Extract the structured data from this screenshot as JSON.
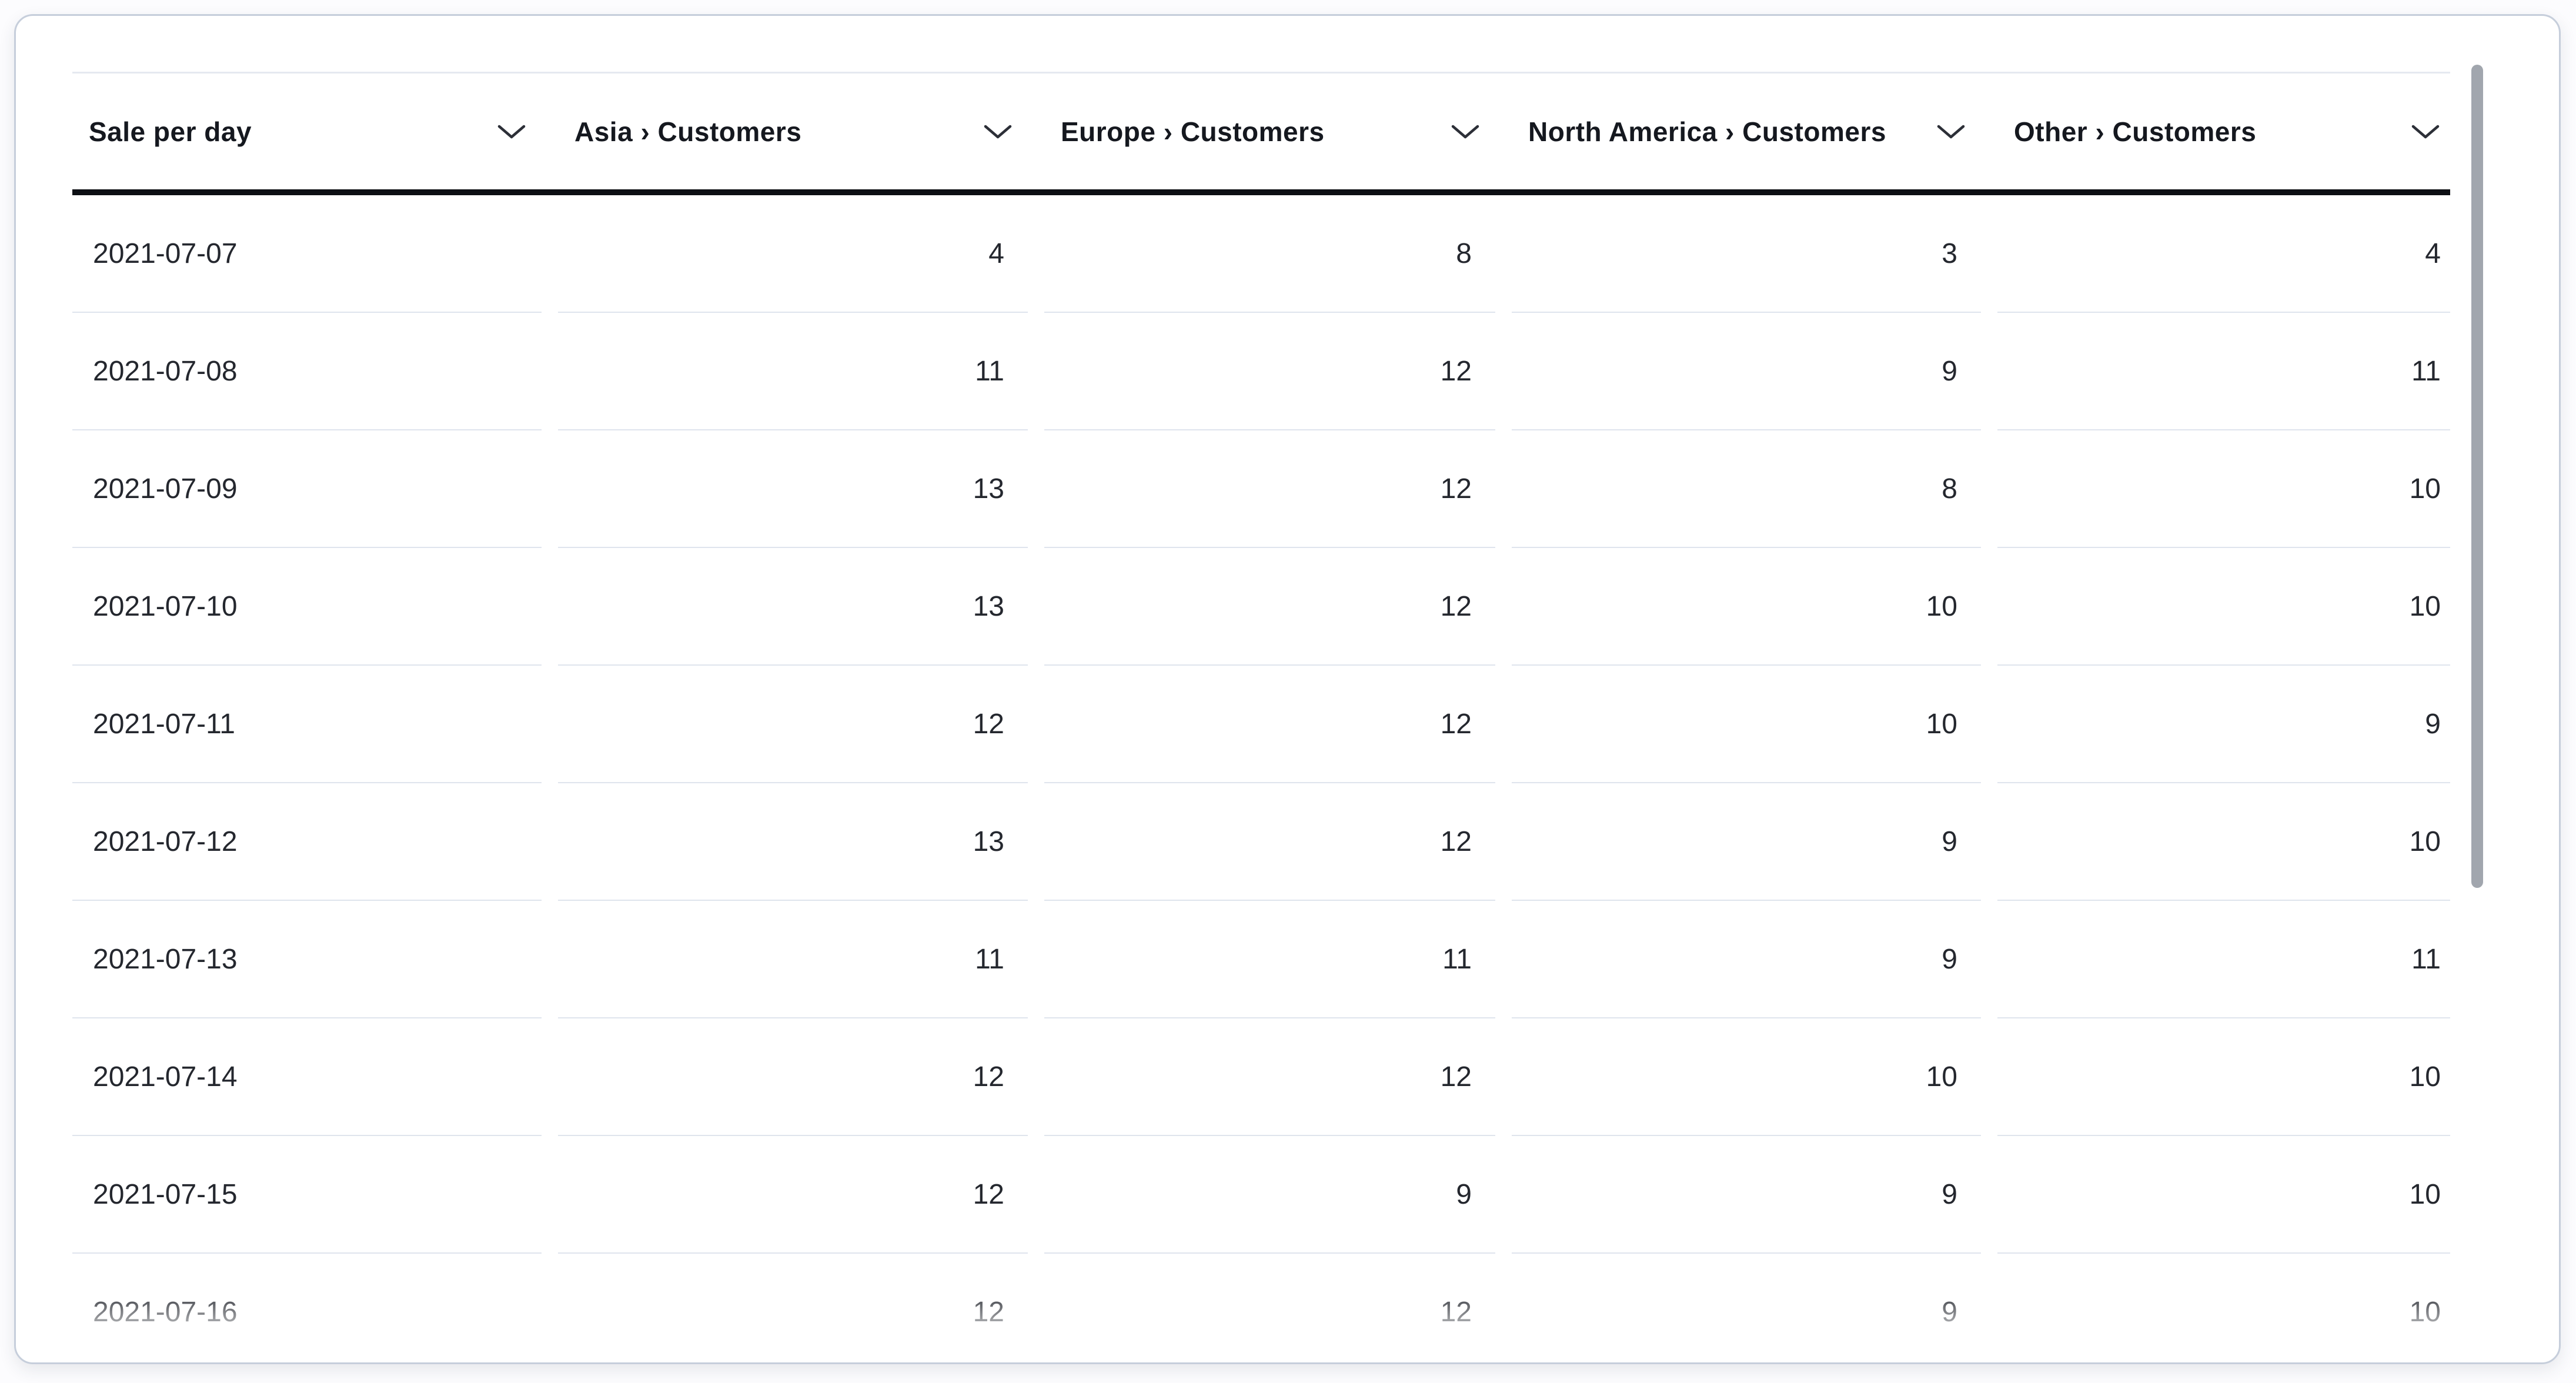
{
  "table": {
    "columns": [
      {
        "label": "Sale per day",
        "align": "left"
      },
      {
        "label": "Asia › Customers",
        "align": "right"
      },
      {
        "label": "Europe › Customers",
        "align": "right"
      },
      {
        "label": "North America › Customers",
        "align": "right"
      },
      {
        "label": "Other › Customers",
        "align": "right"
      }
    ],
    "rows": [
      [
        "2021-07-07",
        4,
        8,
        3,
        4
      ],
      [
        "2021-07-08",
        11,
        12,
        9,
        11
      ],
      [
        "2021-07-09",
        13,
        12,
        8,
        10
      ],
      [
        "2021-07-10",
        13,
        12,
        10,
        10
      ],
      [
        "2021-07-11",
        12,
        12,
        10,
        9
      ],
      [
        "2021-07-12",
        13,
        12,
        9,
        10
      ],
      [
        "2021-07-13",
        11,
        11,
        9,
        11
      ],
      [
        "2021-07-14",
        12,
        12,
        10,
        10
      ],
      [
        "2021-07-15",
        12,
        9,
        9,
        10
      ],
      [
        "2021-07-16",
        12,
        12,
        9,
        10
      ]
    ]
  },
  "icons": {
    "header_sort": "chevron-down-icon"
  },
  "colors": {
    "header_rule": "#0d0f14",
    "row_divider": "#dfe4ed",
    "card_border": "#c6cedb",
    "scrollbar_thumb": "#a1a6ae",
    "header_text": "#15181f",
    "body_text": "#24272e"
  }
}
